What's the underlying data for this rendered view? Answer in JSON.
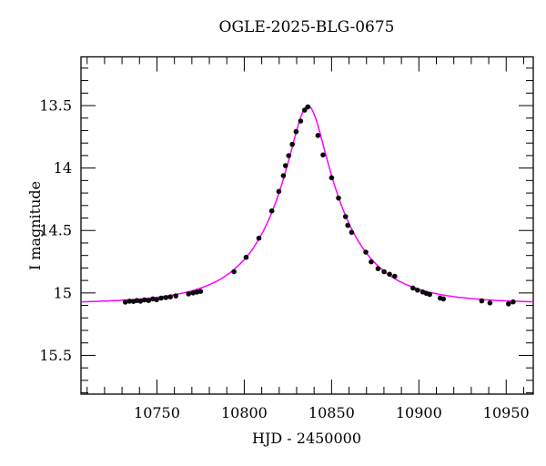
{
  "chart_data": {
    "type": "scatter",
    "title": "OGLE-2025-BLG-0675",
    "xlabel": "HJD - 2450000",
    "ylabel": "I magnitude",
    "x_axis": {
      "min": 10706.5,
      "max": 10965.5,
      "major_ticks": [
        10750,
        10800,
        10850,
        10900,
        10950
      ],
      "minor_step": 10
    },
    "y_axis": {
      "min": 13.11,
      "max": 15.81,
      "inverted": true,
      "major_ticks": [
        13.5,
        14,
        14.5,
        15,
        15.5
      ],
      "minor_step": 0.1
    },
    "legend": "none",
    "grid": false,
    "model_curve": {
      "name": "paczynski-microlensing-fit",
      "color": "#ff00ff",
      "t0": 10836.5,
      "tE": 39.9,
      "u0": 0.2375,
      "I0": 15.085,
      "peak_mag": 13.5
    },
    "points_color": "#0a0a0a",
    "points": [
      [
        10731.9,
        15.073
      ],
      [
        10734.2,
        15.066
      ],
      [
        10736.5,
        15.068
      ],
      [
        10738.5,
        15.061
      ],
      [
        10740.6,
        15.066
      ],
      [
        10742.9,
        15.056
      ],
      [
        10745.2,
        15.061
      ],
      [
        10747.6,
        15.048
      ],
      [
        10749.8,
        15.054
      ],
      [
        10752.4,
        15.041
      ],
      [
        10755.1,
        15.037
      ],
      [
        10757.7,
        15.032
      ],
      [
        10760.8,
        15.024
      ],
      [
        10768.1,
        15.008
      ],
      [
        10770.7,
        15.0
      ],
      [
        10772.9,
        14.993
      ],
      [
        10775.0,
        14.988
      ],
      [
        10794.1,
        14.83
      ],
      [
        10801.1,
        14.715
      ],
      [
        10808.4,
        14.562
      ],
      [
        10815.8,
        14.343
      ],
      [
        10819.8,
        14.187
      ],
      [
        10822.4,
        14.061
      ],
      [
        10823.6,
        13.981
      ],
      [
        10825.4,
        13.901
      ],
      [
        10827.5,
        13.81
      ],
      [
        10829.7,
        13.708
      ],
      [
        10832.3,
        13.624
      ],
      [
        10834.6,
        13.536
      ],
      [
        10836.4,
        13.51
      ],
      [
        10842.2,
        13.739
      ],
      [
        10845.1,
        13.895
      ],
      [
        10850.0,
        14.078
      ],
      [
        10854.0,
        14.24
      ],
      [
        10858.0,
        14.389
      ],
      [
        10859.3,
        14.459
      ],
      [
        10861.5,
        14.515
      ],
      [
        10869.6,
        14.673
      ],
      [
        10872.7,
        14.751
      ],
      [
        10876.6,
        14.806
      ],
      [
        10880.1,
        14.83
      ],
      [
        10883.2,
        14.85
      ],
      [
        10886.2,
        14.866
      ],
      [
        10896.6,
        14.961
      ],
      [
        10899.2,
        14.978
      ],
      [
        10902.2,
        14.992
      ],
      [
        10904.2,
        15.003
      ],
      [
        10906.2,
        15.012
      ],
      [
        10912.2,
        15.041
      ],
      [
        10914.0,
        15.048
      ],
      [
        10936.0,
        15.064
      ],
      [
        10940.7,
        15.08
      ],
      [
        10951.3,
        15.088
      ],
      [
        10954.0,
        15.072
      ]
    ]
  }
}
